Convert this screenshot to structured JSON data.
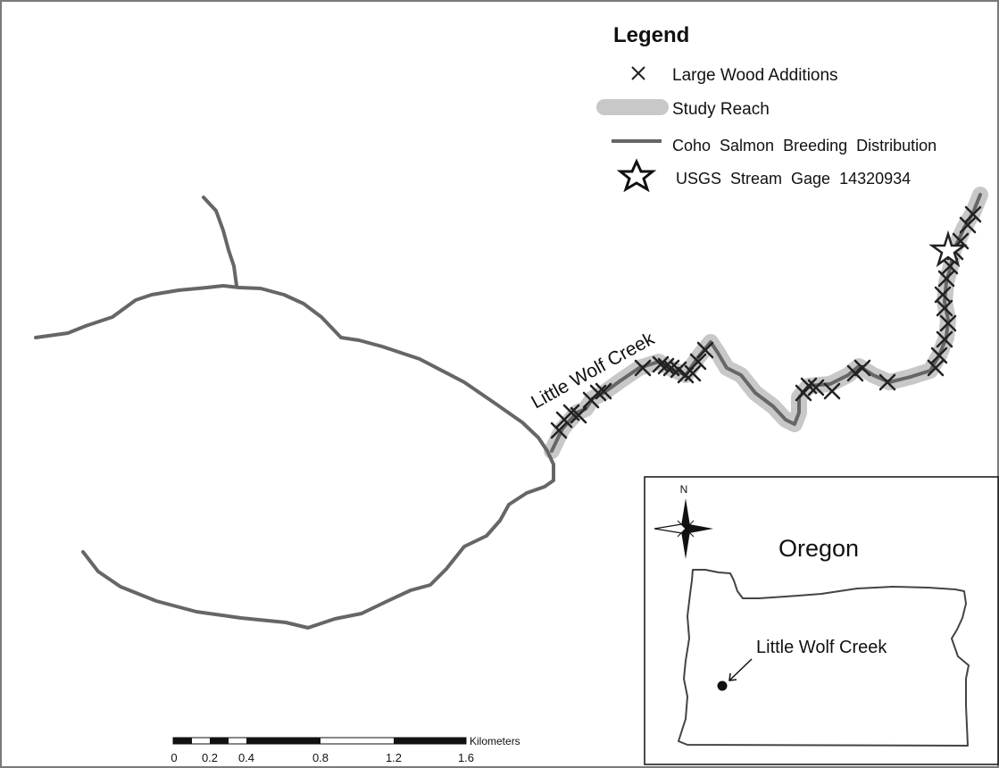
{
  "legend": {
    "title": "Legend",
    "items": [
      {
        "label": "Large Wood Additions",
        "icon": "x-mark-icon"
      },
      {
        "label": "Study Reach",
        "icon": "study-reach-swatch-icon"
      },
      {
        "label": "Coho  Salmon  Breeding  Distribution",
        "icon": "stream-line-icon"
      },
      {
        "label": "USGS  Stream  Gage  14320934",
        "icon": "star-icon"
      }
    ]
  },
  "map": {
    "creek_label": "Little Wolf Creek"
  },
  "inset": {
    "title": "Oregon",
    "site_label": "Little Wolf Creek",
    "north_label": "N"
  },
  "scalebar": {
    "unit": "Kilometers",
    "ticks": [
      "0",
      "0.2",
      "0.4",
      "0.8",
      "1.2",
      "1.6"
    ]
  },
  "colors": {
    "stream": "#666666",
    "study_reach": "#c8c8c8",
    "marker": "#222222",
    "frame": "#7a7a7a"
  }
}
